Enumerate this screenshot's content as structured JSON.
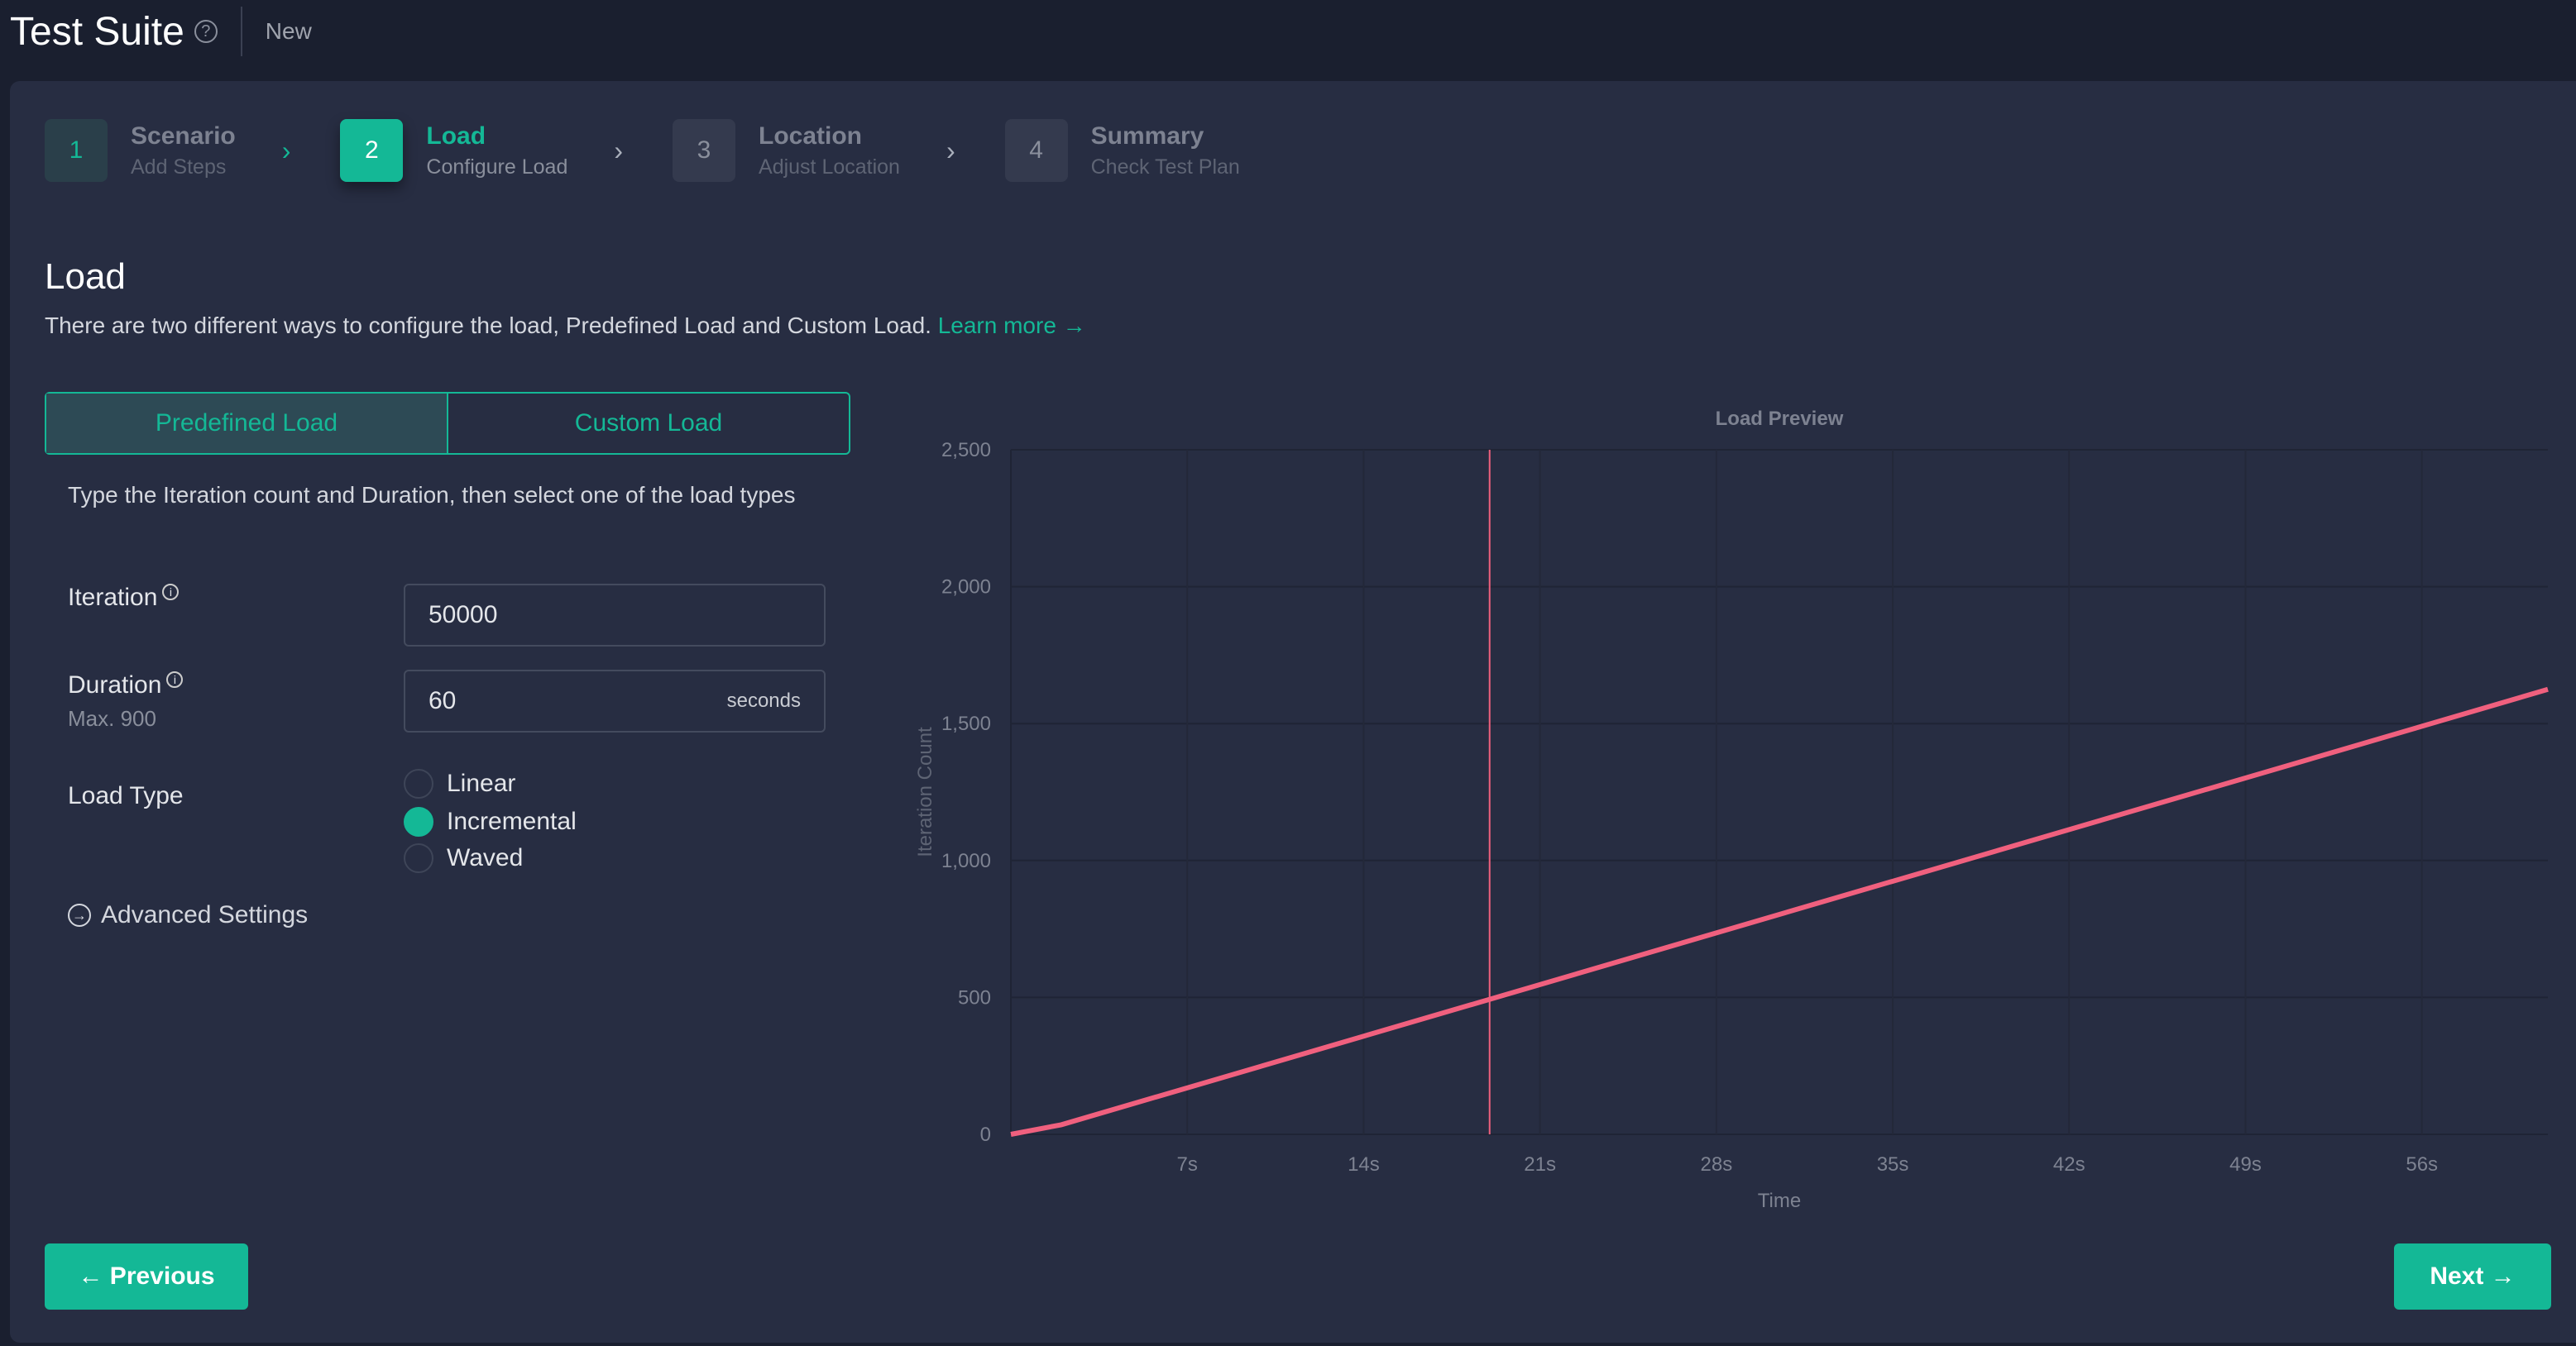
{
  "header": {
    "title": "Test Suite",
    "status": "New"
  },
  "steps": [
    {
      "number": "1",
      "name": "Scenario",
      "sub": "Add Steps"
    },
    {
      "number": "2",
      "name": "Load",
      "sub": "Configure Load"
    },
    {
      "number": "3",
      "name": "Location",
      "sub": "Adjust Location"
    },
    {
      "number": "4",
      "name": "Summary",
      "sub": "Check Test Plan"
    }
  ],
  "section": {
    "title": "Load",
    "description": "There are two different ways to configure the load, Predefined Load and Custom Load.",
    "learn_more": "Learn more →"
  },
  "tabs": {
    "predefined": "Predefined Load",
    "custom": "Custom Load"
  },
  "form": {
    "hint": "Type the Iteration count and Duration, then select one of the load types",
    "iteration_label": "Iteration",
    "iteration_value": "50000",
    "duration_label": "Duration",
    "duration_max": "Max. 900",
    "duration_value": "60",
    "duration_unit": "seconds",
    "load_type_label": "Load Type",
    "load_types": [
      "Linear",
      "Incremental",
      "Waved"
    ],
    "selected_load_type": "Incremental",
    "advanced": "Advanced Settings"
  },
  "buttons": {
    "previous": "← Previous",
    "next": "Next →"
  },
  "chart_data": {
    "type": "line",
    "title": "Load Preview",
    "xlabel": "Time",
    "ylabel": "Iteration Count",
    "xlim": [
      0,
      61
    ],
    "ylim": [
      0,
      2500
    ],
    "xticks": [
      7,
      14,
      21,
      28,
      35,
      42,
      49,
      56
    ],
    "xtick_labels": [
      "7s",
      "14s",
      "21s",
      "28s",
      "35s",
      "42s",
      "49s",
      "56s"
    ],
    "yticks": [
      0,
      500,
      1000,
      1500,
      2000,
      2500
    ],
    "ytick_labels": [
      "0",
      "500",
      "1,000",
      "1,500",
      "2,000",
      "2,500"
    ],
    "series": [
      {
        "name": "Load",
        "color": "#f0607e",
        "x": [
          0,
          2,
          61
        ],
        "y": [
          0,
          35,
          1625
        ]
      }
    ],
    "marker_x": 19,
    "grid": true
  }
}
